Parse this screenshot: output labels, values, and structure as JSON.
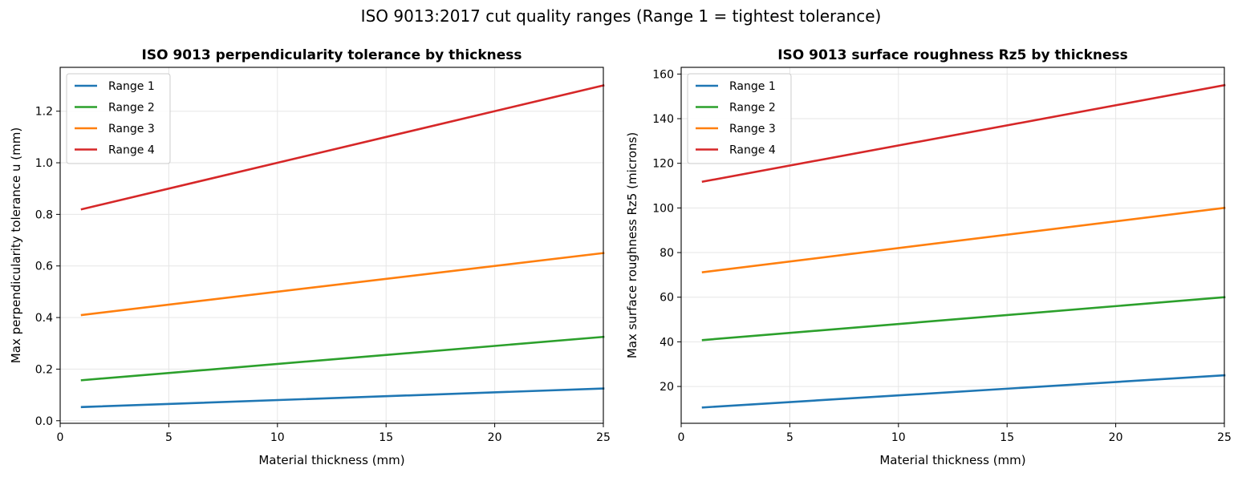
{
  "figure": {
    "suptitle": "ISO 9013:2017 cut quality ranges (Range 1 = tightest tolerance)"
  },
  "colors": {
    "Range 1": "#1f77b4",
    "Range 2": "#2ca02c",
    "Range 3": "#ff7f0e",
    "Range 4": "#d62728",
    "grid": "#e6e6e6",
    "axis": "#000000"
  },
  "chart_data": [
    {
      "type": "line",
      "title": "ISO 9013 perpendicularity tolerance by thickness",
      "xlabel": "Material thickness (mm)",
      "ylabel": "Max perpendicularity tolerance u (mm)",
      "xlim": [
        0,
        25
      ],
      "ylim": [
        -0.01,
        1.37
      ],
      "xticks": [
        0,
        5,
        10,
        15,
        20,
        25
      ],
      "yticks": [
        0.0,
        0.2,
        0.4,
        0.6,
        0.8,
        1.0,
        1.2
      ],
      "ytick_labels": [
        "0.0",
        "0.2",
        "0.4",
        "0.6",
        "0.8",
        "1.0",
        "1.2"
      ],
      "grid": true,
      "legend_position": "upper-left",
      "series": [
        {
          "name": "Range 1",
          "x": [
            1,
            25
          ],
          "y": [
            0.053,
            0.125
          ]
        },
        {
          "name": "Range 2",
          "x": [
            1,
            25
          ],
          "y": [
            0.157,
            0.325
          ]
        },
        {
          "name": "Range 3",
          "x": [
            1,
            25
          ],
          "y": [
            0.41,
            0.65
          ]
        },
        {
          "name": "Range 4",
          "x": [
            1,
            25
          ],
          "y": [
            0.82,
            1.3
          ]
        }
      ]
    },
    {
      "type": "line",
      "title": "ISO 9013 surface roughness Rz5 by thickness",
      "xlabel": "Material thickness (mm)",
      "ylabel": "Max surface roughness Rz5 (microns)",
      "xlim": [
        0,
        25
      ],
      "ylim": [
        3.5,
        163
      ],
      "xticks": [
        0,
        5,
        10,
        15,
        20,
        25
      ],
      "yticks": [
        20,
        40,
        60,
        80,
        100,
        120,
        140,
        160
      ],
      "ytick_labels": [
        "20",
        "40",
        "60",
        "80",
        "100",
        "120",
        "140",
        "160"
      ],
      "grid": true,
      "legend_position": "upper-left",
      "series": [
        {
          "name": "Range 1",
          "x": [
            1,
            25
          ],
          "y": [
            10.6,
            25
          ]
        },
        {
          "name": "Range 2",
          "x": [
            1,
            25
          ],
          "y": [
            40.8,
            60
          ]
        },
        {
          "name": "Range 3",
          "x": [
            1,
            25
          ],
          "y": [
            71.2,
            100
          ]
        },
        {
          "name": "Range 4",
          "x": [
            1,
            25
          ],
          "y": [
            111.8,
            155
          ]
        }
      ]
    }
  ]
}
